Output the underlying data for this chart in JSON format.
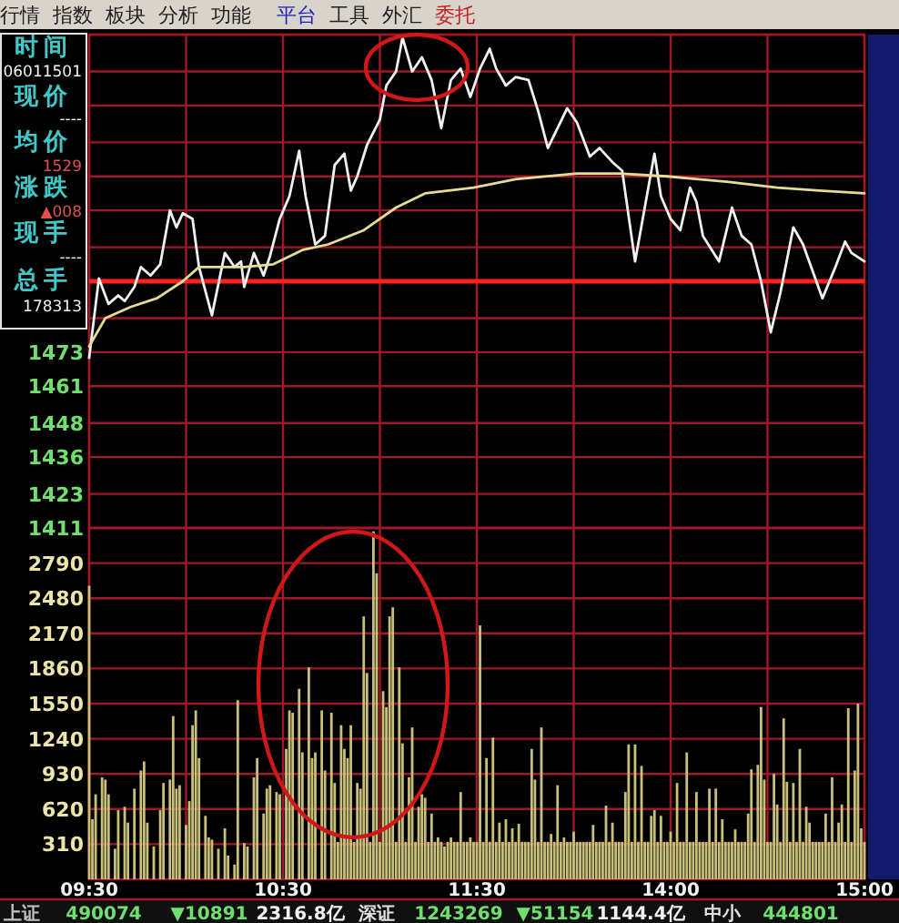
{
  "chart_data": [
    {
      "type": "line",
      "annotations": [
        "行情",
        "指数",
        "板块",
        "分析",
        "功能",
        "平台",
        "工具",
        "外汇",
        "委托",
        "时间",
        "06011501",
        "现价",
        "----",
        "均价",
        "1529",
        "涨跌",
        "▲008",
        "现手",
        "----",
        "总手",
        "178313"
      ],
      "categories": [
        null,
        null,
        null,
        null,
        null,
        null,
        null,
        null,
        null,
        null,
        null,
        null,
        null,
        null,
        null,
        null,
        null,
        null,
        null,
        null,
        null,
        null,
        null,
        null,
        null,
        null,
        null,
        null,
        null,
        null,
        null,
        null,
        null,
        null,
        null,
        null,
        null,
        null,
        null,
        null,
        null,
        null,
        null,
        null,
        null,
        null,
        null,
        null,
        null,
        null,
        null,
        null,
        null,
        null,
        null,
        null,
        null,
        null,
        null,
        null,
        null,
        null,
        null,
        null,
        null,
        null,
        null,
        null,
        null,
        null,
        null,
        null,
        null,
        null,
        null,
        null,
        null,
        null,
        null,
        null,
        null,
        null,
        null,
        null,
        null,
        null,
        null,
        null,
        null,
        null,
        null,
        null,
        null,
        null,
        null,
        null,
        null,
        null,
        null,
        null,
        null,
        null,
        null,
        null,
        null,
        null,
        null,
        null,
        null,
        null,
        null,
        null,
        null,
        null,
        null,
        null,
        null,
        null,
        null,
        null,
        null,
        null,
        null,
        null,
        null,
        null,
        null,
        null,
        null,
        null,
        null,
        null,
        null,
        null,
        null,
        null,
        null,
        null,
        null,
        null,
        null,
        null,
        null,
        null,
        null,
        null,
        null,
        null,
        null,
        null,
        null,
        null,
        null,
        null,
        null,
        null,
        null,
        null,
        null,
        null,
        null,
        null,
        null,
        null,
        null,
        null,
        null,
        null,
        null,
        null,
        null,
        null,
        null,
        null,
        null,
        null,
        null,
        null,
        null,
        null,
        null,
        null,
        null,
        null,
        null,
        null,
        null,
        null,
        null,
        null,
        null,
        null,
        null,
        null,
        null,
        null,
        null,
        null,
        null,
        null,
        null,
        null,
        null,
        null,
        null,
        null,
        null,
        null,
        null,
        null,
        null,
        null,
        null,
        null,
        null,
        null,
        null,
        null,
        null,
        null,
        null,
        null,
        null,
        null,
        null,
        null,
        null,
        null,
        null,
        null,
        null,
        null,
        null,
        null,
        null,
        null,
        null,
        null,
        null,
        null,
        null
      ],
      "tick_labels": "y",
      "ylim": [
        1411,
        1585
      ],
      "yticks": [
        1411,
        1423,
        1436,
        1448,
        1461,
        1473,
        {
          "value": 1485,
          "label": null
        },
        {
          "value": 1510,
          "label": null
        },
        {
          "value": 1523,
          "label": null
        },
        {
          "value": 1535,
          "label": null
        },
        {
          "value": 1547,
          "label": null
        },
        {
          "value": 1560,
          "label": null
        },
        {
          "value": 1572,
          "label": null
        },
        {
          "value": 1585,
          "label": null
        }
      ],
      "ref_lines": [
        {
          "axis": "y",
          "value": 1498,
          "color": "#ff2020"
        }
      ],
      "grid": true,
      "line_style": "solid",
      "series": [
        {
          "color": "#f0f0f0",
          "values": [
            1471,
            null,
            null,
            1499,
            null,
            null,
            1490,
            null,
            null,
            1493,
            null,
            1491,
            null,
            null,
            1496,
            null,
            1503,
            null,
            null,
            1500,
            null,
            null,
            1504,
            null,
            null,
            1523,
            null,
            1517,
            null,
            1522,
            null,
            null,
            1520,
            null,
            1503,
            null,
            null,
            null,
            1486,
            null,
            null,
            null,
            1508,
            null,
            null,
            1503,
            null,
            1505,
            1496,
            null,
            null,
            1508,
            null,
            null,
            1500,
            null,
            1507,
            null,
            null,
            1520,
            null,
            null,
            1528,
            null,
            null,
            1544,
            null,
            1528,
            null,
            null,
            1511,
            null,
            null,
            1514,
            null,
            null,
            1539,
            null,
            null,
            1543,
            null,
            1530,
            null,
            1535,
            null,
            null,
            1546,
            null,
            null,
            null,
            1555,
            null,
            1567,
            null,
            null,
            1572,
            null,
            1584,
            null,
            null,
            1572,
            null,
            null,
            1577,
            null,
            null,
            1569,
            null,
            null,
            1552,
            null,
            null,
            1569,
            null,
            null,
            1573,
            null,
            null,
            1563,
            null,
            null,
            1573,
            null,
            null,
            1580,
            null,
            1573,
            null,
            null,
            1567,
            null,
            null,
            1570,
            null,
            null,
            null,
            1569,
            null,
            null,
            1558,
            null,
            null,
            1545,
            null,
            null,
            null,
            null,
            null,
            1559,
            null,
            null,
            1554,
            null,
            null,
            null,
            1542,
            null,
            null,
            1545,
            null,
            null,
            null,
            1540,
            null,
            null,
            1537,
            null,
            null,
            null,
            1505,
            null,
            null,
            1524,
            null,
            null,
            1543,
            null,
            1528,
            null,
            null,
            1520,
            null,
            null,
            1516,
            null,
            null,
            1531,
            null,
            1526,
            null,
            1514,
            null,
            null,
            null,
            null,
            1505,
            null,
            null,
            null,
            1524,
            null,
            null,
            1514,
            null,
            null,
            1511,
            null,
            null,
            1498,
            null,
            null,
            1480,
            null,
            null,
            1494,
            null,
            null,
            null,
            1517,
            null,
            null,
            1511,
            null,
            null,
            null,
            null,
            null,
            1492,
            null,
            null,
            null,
            1503,
            null,
            null,
            1512,
            null,
            1508,
            null,
            null,
            null,
            1505
          ]
        },
        {
          "color": "#e6dc96",
          "values": [
            1475,
            null,
            null,
            null,
            null,
            1485,
            null,
            null,
            null,
            null,
            null,
            null,
            null,
            1489,
            null,
            null,
            null,
            null,
            null,
            null,
            null,
            1492,
            null,
            null,
            null,
            null,
            null,
            null,
            null,
            1498,
            null,
            null,
            null,
            null,
            1503,
            null,
            null,
            null,
            null,
            null,
            null,
            null,
            null,
            null,
            null,
            null,
            null,
            null,
            1503,
            null,
            null,
            null,
            null,
            null,
            null,
            null,
            null,
            1504,
            null,
            null,
            null,
            null,
            null,
            null,
            null,
            null,
            1509,
            null,
            null,
            null,
            null,
            null,
            null,
            null,
            1511,
            null,
            null,
            null,
            null,
            null,
            null,
            null,
            null,
            null,
            null,
            1516,
            null,
            null,
            null,
            null,
            null,
            null,
            null,
            null,
            null,
            1524,
            null,
            null,
            null,
            null,
            null,
            null,
            null,
            null,
            1529,
            null,
            null,
            null,
            null,
            null,
            null,
            null,
            null,
            null,
            null,
            null,
            null,
            null,
            null,
            1531,
            null,
            null,
            null,
            null,
            null,
            null,
            null,
            null,
            null,
            null,
            null,
            null,
            1534,
            null,
            null,
            null,
            null,
            null,
            null,
            null,
            null,
            null,
            null,
            null,
            null,
            null,
            null,
            null,
            null,
            null,
            null,
            1536,
            null,
            null,
            null,
            null,
            null,
            null,
            null,
            null,
            null,
            null,
            null,
            null,
            1536,
            null,
            null,
            null,
            null,
            null,
            null,
            null,
            null,
            null,
            null,
            null,
            null,
            null,
            null,
            1535,
            null,
            null,
            null,
            null,
            null,
            null,
            null,
            null,
            null,
            null,
            null,
            null,
            null,
            null,
            null,
            null,
            null,
            null,
            1533,
            null,
            null,
            null,
            null,
            null,
            null,
            null,
            null,
            null,
            null,
            null,
            null,
            null,
            null,
            1531,
            null,
            null,
            null,
            null,
            null,
            null,
            null,
            null,
            null,
            null,
            null,
            null,
            1530,
            null,
            null,
            null,
            null,
            null,
            null,
            null,
            null,
            null,
            null,
            null,
            null,
            null,
            1529
          ]
        }
      ]
    },
    {
      "type": "bar",
      "annotations": [
        "上证",
        "490074",
        "▼10891",
        "2316.8亿",
        "深证",
        "1243269",
        "▼51154",
        "1144.4亿",
        "中小",
        "444801"
      ],
      "categories": [
        "09:30",
        null,
        null,
        null,
        null,
        null,
        null,
        null,
        null,
        null,
        null,
        null,
        null,
        null,
        null,
        null,
        null,
        null,
        null,
        null,
        null,
        null,
        null,
        null,
        null,
        null,
        null,
        null,
        null,
        null,
        null,
        null,
        null,
        null,
        null,
        null,
        null,
        null,
        null,
        null,
        null,
        null,
        null,
        null,
        null,
        null,
        null,
        null,
        null,
        null,
        null,
        null,
        null,
        null,
        null,
        null,
        null,
        null,
        null,
        null,
        "10:30",
        null,
        null,
        null,
        null,
        null,
        null,
        null,
        null,
        null,
        null,
        null,
        null,
        null,
        null,
        null,
        null,
        null,
        null,
        null,
        null,
        null,
        null,
        null,
        null,
        null,
        null,
        null,
        null,
        null,
        null,
        null,
        null,
        null,
        null,
        null,
        null,
        null,
        null,
        null,
        null,
        null,
        null,
        null,
        null,
        null,
        null,
        null,
        null,
        null,
        null,
        null,
        null,
        null,
        null,
        null,
        null,
        null,
        null,
        null,
        "11:30",
        null,
        null,
        null,
        null,
        null,
        null,
        null,
        null,
        null,
        null,
        null,
        null,
        null,
        null,
        null,
        null,
        null,
        null,
        null,
        null,
        null,
        null,
        null,
        null,
        null,
        null,
        null,
        null,
        null,
        null,
        null,
        null,
        null,
        null,
        null,
        null,
        null,
        null,
        null,
        null,
        null,
        null,
        null,
        null,
        null,
        null,
        null,
        null,
        null,
        null,
        null,
        null,
        null,
        null,
        null,
        null,
        null,
        null,
        null,
        "14:00",
        null,
        null,
        null,
        null,
        null,
        null,
        null,
        null,
        null,
        null,
        null,
        null,
        null,
        null,
        null,
        null,
        null,
        null,
        null,
        null,
        null,
        null,
        null,
        null,
        null,
        null,
        null,
        null,
        null,
        null,
        null,
        null,
        null,
        null,
        null,
        null,
        null,
        null,
        null,
        null,
        null,
        null,
        null,
        null,
        null,
        null,
        null,
        null,
        null,
        null,
        null,
        null,
        null,
        null,
        null,
        null,
        null,
        null,
        null,
        "15:00"
      ],
      "ylim": [
        0,
        3100
      ],
      "yticks": [
        310,
        620,
        930,
        1240,
        1550,
        1860,
        2170,
        2480,
        2790
      ],
      "grid": true,
      "series": [
        {
          "color": "#c8c07a",
          "values": [
            2590,
            530,
            750,
            null,
            900,
            880,
            750,
            null,
            270,
            610,
            null,
            640,
            500,
            null,
            800,
            null,
            960,
            1040,
            500,
            null,
            290,
            null,
            610,
            850,
            null,
            880,
            1440,
            800,
            830,
            null,
            480,
            690,
            1360,
            1490,
            1070,
            null,
            560,
            370,
            350,
            null,
            270,
            null,
            450,
            210,
            null,
            130,
            1580,
            null,
            320,
            290,
            null,
            900,
            1070,
            null,
            580,
            800,
            830,
            null,
            770,
            750,
            null,
            1150,
            1490,
            1470,
            null,
            1680,
            1120,
            null,
            1870,
            1070,
            1120,
            null,
            1490,
            960,
            null,
            1470,
            850,
            330,
            1360,
            1150,
            1070,
            1360,
            330,
            850,
            800,
            2320,
            1820,
            330,
            3070,
            2700,
            330,
            1660,
            1520,
            2320,
            2400,
            330,
            1870,
            1200,
            330,
            900,
            1340,
            330,
            640,
            750,
            720,
            330,
            580,
            330,
            370,
            330,
            290,
            330,
            370,
            330,
            330,
            770,
            330,
            330,
            370,
            330,
            330,
            2240,
            330,
            1070,
            330,
            1250,
            330,
            500,
            330,
            530,
            330,
            450,
            330,
            490,
            330,
            330,
            330,
            1150,
            880,
            330,
            1340,
            330,
            330,
            400,
            330,
            830,
            330,
            370,
            330,
            330,
            420,
            330,
            330,
            330,
            330,
            330,
            480,
            330,
            330,
            330,
            650,
            330,
            500,
            330,
            330,
            330,
            770,
            1190,
            330,
            1190,
            330,
            1000,
            330,
            330,
            560,
            610,
            330,
            560,
            330,
            330,
            420,
            330,
            850,
            330,
            330,
            1120,
            330,
            330,
            770,
            330,
            330,
            330,
            800,
            330,
            800,
            330,
            530,
            330,
            330,
            330,
            440,
            330,
            330,
            330,
            580,
            970,
            330,
            1010,
            1520,
            880,
            330,
            330,
            930,
            660,
            330,
            1420,
            860,
            330,
            850,
            330,
            1150,
            330,
            640,
            500,
            330,
            330,
            330,
            330,
            580,
            330,
            900,
            330,
            500,
            660,
            330,
            1510,
            330,
            960,
            1550,
            450,
            330
          ]
        }
      ]
    }
  ]
}
